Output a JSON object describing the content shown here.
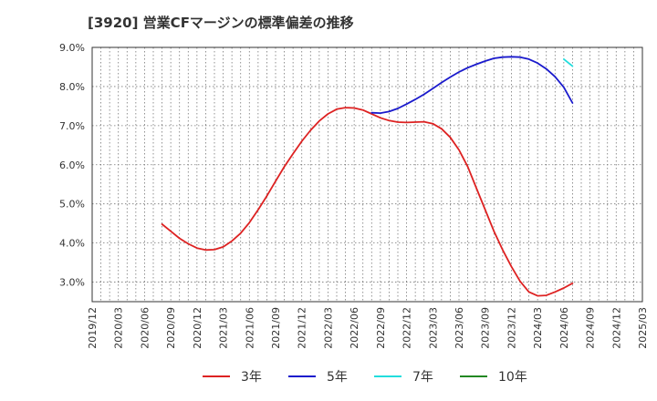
{
  "chart_data": {
    "type": "line",
    "title": "[3920]  営業CFマージンの標準偏差の推移",
    "xlabel": "",
    "ylabel": "",
    "x_ticks": [
      "2019/12",
      "2020/03",
      "2020/06",
      "2020/09",
      "2020/12",
      "2021/03",
      "2021/06",
      "2021/09",
      "2021/12",
      "2022/03",
      "2022/06",
      "2022/09",
      "2022/12",
      "2023/03",
      "2023/06",
      "2023/09",
      "2023/12",
      "2024/03",
      "2024/06",
      "2024/09",
      "2024/12",
      "2025/03"
    ],
    "x_range": [
      "2019/12",
      "2025/03"
    ],
    "y_ticks": [
      3.0,
      4.0,
      5.0,
      6.0,
      7.0,
      8.0,
      9.0
    ],
    "y_tick_labels": [
      "3.0%",
      "4.0%",
      "5.0%",
      "6.0%",
      "7.0%",
      "8.0%",
      "9.0%"
    ],
    "ylim": [
      2.5,
      9.0
    ],
    "grid": true,
    "legend_position": "bottom",
    "series": [
      {
        "name": "3年",
        "color": "#dd2222",
        "points": [
          [
            "2020/08",
            4.48
          ],
          [
            "2020/09",
            4.3
          ],
          [
            "2020/10",
            4.12
          ],
          [
            "2020/11",
            3.98
          ],
          [
            "2020/12",
            3.87
          ],
          [
            "2021/01",
            3.82
          ],
          [
            "2021/02",
            3.83
          ],
          [
            "2021/03",
            3.9
          ],
          [
            "2021/04",
            4.05
          ],
          [
            "2021/05",
            4.25
          ],
          [
            "2021/06",
            4.52
          ],
          [
            "2021/07",
            4.85
          ],
          [
            "2021/08",
            5.2
          ],
          [
            "2021/09",
            5.58
          ],
          [
            "2021/10",
            5.95
          ],
          [
            "2021/11",
            6.28
          ],
          [
            "2021/12",
            6.6
          ],
          [
            "2022/01",
            6.88
          ],
          [
            "2022/02",
            7.12
          ],
          [
            "2022/03",
            7.3
          ],
          [
            "2022/04",
            7.42
          ],
          [
            "2022/05",
            7.46
          ],
          [
            "2022/06",
            7.45
          ],
          [
            "2022/07",
            7.4
          ],
          [
            "2022/08",
            7.3
          ],
          [
            "2022/09",
            7.2
          ],
          [
            "2022/10",
            7.13
          ],
          [
            "2022/11",
            7.09
          ],
          [
            "2022/12",
            7.08
          ],
          [
            "2023/01",
            7.09
          ],
          [
            "2023/02",
            7.1
          ],
          [
            "2023/03",
            7.05
          ],
          [
            "2023/04",
            6.92
          ],
          [
            "2023/05",
            6.7
          ],
          [
            "2023/06",
            6.38
          ],
          [
            "2023/07",
            5.95
          ],
          [
            "2023/08",
            5.4
          ],
          [
            "2023/09",
            4.85
          ],
          [
            "2023/10",
            4.3
          ],
          [
            "2023/11",
            3.82
          ],
          [
            "2023/12",
            3.4
          ],
          [
            "2024/01",
            3.02
          ],
          [
            "2024/02",
            2.75
          ],
          [
            "2024/03",
            2.65
          ],
          [
            "2024/04",
            2.66
          ],
          [
            "2024/05",
            2.75
          ],
          [
            "2024/06",
            2.85
          ],
          [
            "2024/07",
            2.97
          ]
        ]
      },
      {
        "name": "5年",
        "color": "#1a1acc",
        "points": [
          [
            "2022/08",
            7.33
          ],
          [
            "2022/09",
            7.32
          ],
          [
            "2022/10",
            7.36
          ],
          [
            "2022/11",
            7.44
          ],
          [
            "2022/12",
            7.55
          ],
          [
            "2023/01",
            7.67
          ],
          [
            "2023/02",
            7.8
          ],
          [
            "2023/03",
            7.95
          ],
          [
            "2023/04",
            8.1
          ],
          [
            "2023/05",
            8.24
          ],
          [
            "2023/06",
            8.37
          ],
          [
            "2023/07",
            8.48
          ],
          [
            "2023/08",
            8.57
          ],
          [
            "2023/09",
            8.65
          ],
          [
            "2023/10",
            8.72
          ],
          [
            "2023/11",
            8.75
          ],
          [
            "2023/12",
            8.76
          ],
          [
            "2024/01",
            8.75
          ],
          [
            "2024/02",
            8.7
          ],
          [
            "2024/03",
            8.6
          ],
          [
            "2024/04",
            8.45
          ],
          [
            "2024/05",
            8.25
          ],
          [
            "2024/06",
            7.98
          ],
          [
            "2024/07",
            7.58
          ]
        ]
      },
      {
        "name": "7年",
        "color": "#22dddd",
        "points": [
          [
            "2024/06",
            8.7
          ],
          [
            "2024/07",
            8.52
          ]
        ]
      },
      {
        "name": "10年",
        "color": "#228822",
        "points": []
      }
    ]
  }
}
